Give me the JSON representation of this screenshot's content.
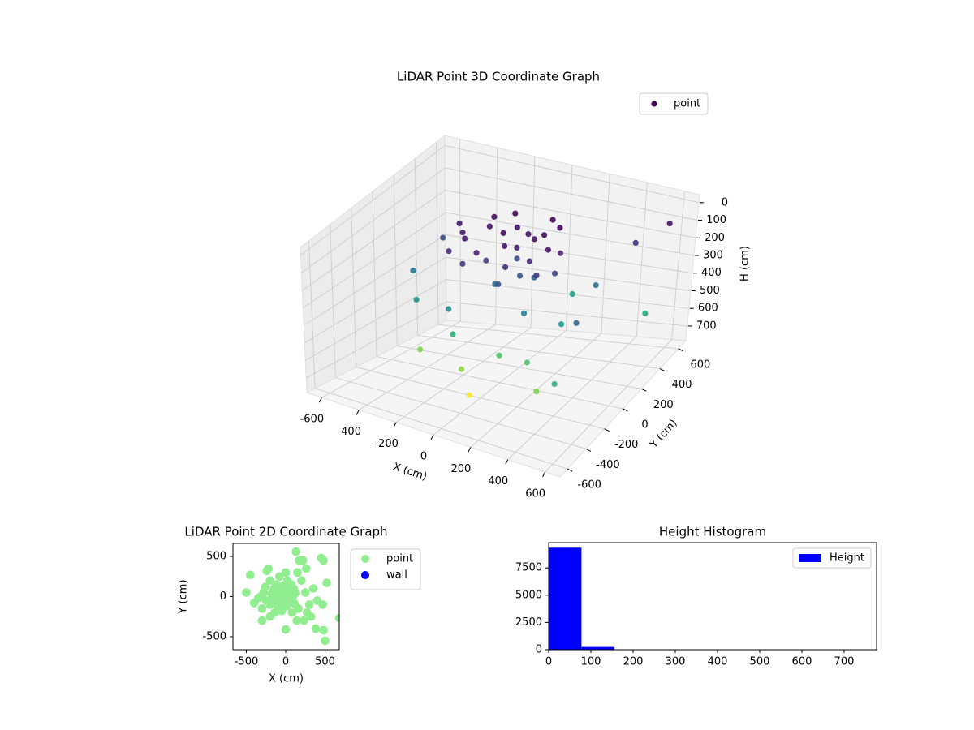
{
  "chart_data": [
    {
      "type": "scatter3d",
      "title": "LiDAR Point 3D Coordinate Graph",
      "xlabel": "X (cm)",
      "ylabel": "Y (cm)",
      "zlabel": "H (cm)",
      "series": [
        {
          "name": "point",
          "colormap": "viridis",
          "x": [
            -250,
            -300,
            -200,
            -150,
            -100,
            -50,
            0,
            50,
            100,
            150,
            -180,
            -80,
            20,
            80,
            120,
            -220,
            -120,
            -30,
            40,
            90,
            -60,
            10,
            170,
            200,
            -280,
            -350,
            -130,
            60,
            220,
            -10,
            -450,
            -500,
            450,
            550,
            480,
            300,
            -150,
            -300,
            100,
            -50,
            20,
            380,
            500,
            200,
            -200,
            350,
            600,
            250,
            -400,
            150
          ],
          "y": [
            100,
            170,
            250,
            30,
            200,
            120,
            150,
            230,
            90,
            180,
            -50,
            300,
            0,
            270,
            350,
            330,
            70,
            210,
            110,
            160,
            50,
            -50,
            30,
            210,
            0,
            230,
            370,
            390,
            120,
            280,
            250,
            50,
            500,
            650,
            -150,
            50,
            -200,
            -250,
            -200,
            -300,
            -350,
            -350,
            -400,
            350,
            -150,
            300,
            350,
            -200,
            -100,
            -50
          ],
          "z": [
            130,
            140,
            120,
            150,
            110,
            130,
            140,
            120,
            160,
            130,
            180,
            120,
            170,
            110,
            100,
            110,
            200,
            230,
            260,
            280,
            300,
            240,
            190,
            150,
            160,
            130,
            90,
            90,
            210,
            130,
            230,
            330,
            180,
            130,
            280,
            430,
            480,
            580,
            530,
            600,
            700,
            580,
            480,
            430,
            380,
            330,
            460,
            530,
            400,
            360
          ]
        }
      ],
      "xlim": [
        -680,
        680
      ],
      "ylim": [
        -680,
        680
      ],
      "zlim": [
        783,
        -45
      ],
      "xticks": [
        -600,
        -400,
        -200,
        0,
        200,
        400,
        600
      ],
      "yticks": [
        -600,
        -400,
        -200,
        0,
        200,
        400,
        600
      ],
      "zticks": [
        0,
        100,
        200,
        300,
        400,
        500,
        600,
        700
      ],
      "grid": true,
      "legend": "upper right"
    },
    {
      "type": "scatter",
      "title": "LiDAR Point 2D Coordinate Graph",
      "xlabel": "X (cm)",
      "ylabel": "Y (cm)",
      "series": [
        {
          "name": "point",
          "color": "#90ee90",
          "x": [
            -450,
            -500,
            -400,
            -350,
            -320,
            -300,
            -300,
            -280,
            -260,
            -250,
            -240,
            -220,
            -200,
            -200,
            -180,
            -170,
            -150,
            -140,
            -130,
            -120,
            -110,
            -100,
            -90,
            -80,
            -70,
            -60,
            -50,
            -40,
            -30,
            -20,
            -10,
            0,
            0,
            10,
            20,
            30,
            40,
            50,
            60,
            70,
            80,
            90,
            100,
            110,
            120,
            130,
            140,
            150,
            160,
            170,
            200,
            220,
            230,
            250,
            260,
            270,
            300,
            320,
            350,
            380,
            400,
            450,
            470,
            480,
            480,
            500,
            520,
            680,
            -200,
            0
          ],
          "y": [
            270,
            50,
            -80,
            -20,
            0,
            -300,
            -150,
            50,
            120,
            -50,
            320,
            350,
            -100,
            200,
            30,
            -60,
            100,
            -200,
            -20,
            150,
            60,
            -120,
            10,
            250,
            -40,
            90,
            -180,
            30,
            -80,
            140,
            -10,
            60,
            -410,
            -120,
            200,
            -30,
            80,
            -60,
            20,
            150,
            -200,
            -10,
            100,
            -90,
            40,
            560,
            -300,
            300,
            -150,
            450,
            200,
            450,
            -300,
            50,
            350,
            -200,
            -100,
            -250,
            100,
            -400,
            -50,
            480,
            -100,
            450,
            -420,
            -550,
            170,
            -270,
            -250,
            300
          ]
        },
        {
          "name": "wall",
          "color": "#0000ff",
          "x": [],
          "y": []
        }
      ],
      "xlim": [
        -670,
        680
      ],
      "ylim": [
        -662,
        662
      ],
      "xticks": [
        -500,
        0,
        500
      ],
      "yticks": [
        -500,
        0,
        500
      ],
      "legend": "outside right"
    },
    {
      "type": "histogram",
      "title": "Height Histogram",
      "name": "Height",
      "color": "#0000ff",
      "bins": [
        0,
        77.7,
        155.4,
        233.1,
        310.8,
        388.5,
        466.2,
        543.9,
        621.6,
        699.3,
        777
      ],
      "values": [
        9350,
        250,
        20,
        10,
        5,
        5,
        3,
        2,
        2,
        1
      ],
      "xlim": [
        0,
        777
      ],
      "ylim": [
        0,
        9817
      ],
      "xticks": [
        0,
        100,
        200,
        300,
        400,
        500,
        600,
        700
      ],
      "yticks": [
        0,
        2500,
        5000,
        7500
      ],
      "legend": "upper right"
    }
  ]
}
